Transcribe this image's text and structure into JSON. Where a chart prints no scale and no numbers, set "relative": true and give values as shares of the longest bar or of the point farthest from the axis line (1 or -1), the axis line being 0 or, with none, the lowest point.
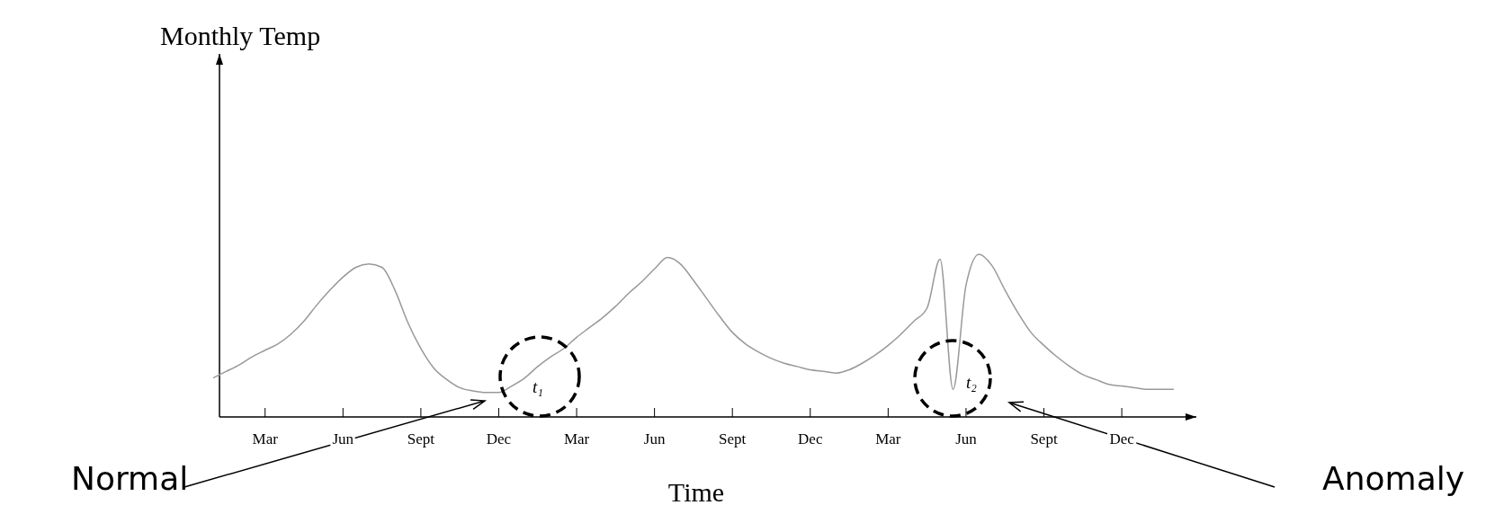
{
  "chart_data": {
    "type": "line",
    "relative": true,
    "xlabel": "Time",
    "categories": [
      null,
      null,
      null,
      null,
      "Mar",
      null,
      null,
      null,
      null,
      null,
      "Jun",
      null,
      null,
      null,
      null,
      null,
      "Sept",
      null,
      null,
      null,
      null,
      null,
      "Dec",
      null,
      null,
      null,
      null,
      null,
      "Mar",
      null,
      null,
      null,
      null,
      null,
      "Jun",
      null,
      null,
      null,
      null,
      null,
      "Sept",
      null,
      null,
      null,
      null,
      null,
      "Dec",
      null,
      null,
      null,
      null,
      null,
      "Mar",
      null,
      null,
      null,
      null,
      null,
      "Jun",
      null,
      null,
      null,
      null,
      null,
      "Sept",
      null,
      null,
      null,
      null,
      null,
      "Dec",
      null,
      null,
      null,
      null
    ],
    "series": [
      {
        "color": "#999999",
        "values": [
          0.24,
          0.28,
          0.32,
          0.37,
          0.41,
          0.45,
          0.51,
          0.59,
          0.69,
          0.78,
          0.86,
          0.92,
          0.94,
          0.92,
          0.78,
          0.58,
          0.42,
          0.3,
          0.23,
          0.18,
          0.16,
          0.15,
          0.15,
          0.19,
          0.24,
          0.31,
          0.37,
          0.42,
          0.49,
          0.55,
          0.61,
          0.68,
          0.76,
          0.83,
          0.91,
          0.98,
          0.94,
          0.84,
          0.73,
          0.62,
          0.52,
          0.45,
          0.4,
          0.36,
          0.33,
          0.31,
          0.29,
          0.28,
          0.27,
          0.29,
          0.33,
          0.38,
          0.44,
          0.51,
          0.59,
          0.67,
          0.97,
          0.17,
          0.81,
          1,
          0.93,
          0.78,
          0.64,
          0.52,
          0.44,
          0.37,
          0.31,
          0.26,
          0.23,
          0.2,
          0.19,
          0.18,
          0.17,
          0.17,
          0.17
        ]
      }
    ],
    "annotations": [
      "t₁",
      "t₂",
      "Normal",
      "Anomaly",
      "Monthly Temp"
    ]
  }
}
